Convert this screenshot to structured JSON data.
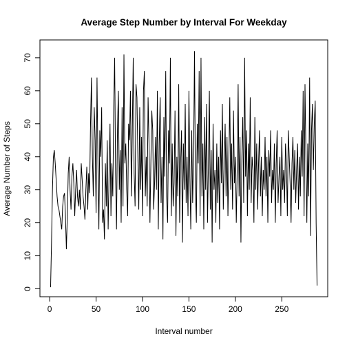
{
  "chart_data": {
    "type": "line",
    "title": "Average Step Number by Interval For Weekday",
    "x_label": "Interval number",
    "y_label": "Average Number of Steps",
    "x": [
      1,
      2,
      3,
      4,
      5,
      6,
      7,
      8,
      9,
      10,
      11,
      12,
      13,
      14,
      15,
      16,
      17,
      18,
      19,
      20,
      21,
      22,
      23,
      24,
      25,
      26,
      27,
      28,
      29,
      30,
      31,
      32,
      33,
      34,
      35,
      36,
      37,
      38,
      39,
      40,
      41,
      42,
      43,
      44,
      45,
      46,
      47,
      48,
      49,
      50,
      51,
      52,
      53,
      54,
      55,
      56,
      57,
      58,
      59,
      60,
      61,
      62,
      63,
      64,
      65,
      66,
      67,
      68,
      69,
      70,
      71,
      72,
      73,
      74,
      75,
      76,
      77,
      78,
      79,
      80,
      81,
      82,
      83,
      84,
      85,
      86,
      87,
      88,
      89,
      90,
      91,
      92,
      93,
      94,
      95,
      96,
      97,
      98,
      99,
      100,
      101,
      102,
      103,
      104,
      105,
      106,
      107,
      108,
      109,
      110,
      111,
      112,
      113,
      114,
      115,
      116,
      117,
      118,
      119,
      120,
      121,
      122,
      123,
      124,
      125,
      126,
      127,
      128,
      129,
      130,
      131,
      132,
      133,
      134,
      135,
      136,
      137,
      138,
      139,
      140,
      141,
      142,
      143,
      144,
      145,
      146,
      147,
      148,
      149,
      150,
      151,
      152,
      153,
      154,
      155,
      156,
      157,
      158,
      159,
      160,
      161,
      162,
      163,
      164,
      165,
      166,
      167,
      168,
      169,
      170,
      171,
      172,
      173,
      174,
      175,
      176,
      177,
      178,
      179,
      180,
      181,
      182,
      183,
      184,
      185,
      186,
      187,
      188,
      189,
      190,
      191,
      192,
      193,
      194,
      195,
      196,
      197,
      198,
      199,
      200,
      201,
      202,
      203,
      204,
      205,
      206,
      207,
      208,
      209,
      210,
      211,
      212,
      213,
      214,
      215,
      216,
      217,
      218,
      219,
      220,
      221,
      222,
      223,
      224,
      225,
      226,
      227,
      228,
      229,
      230,
      231,
      232,
      233,
      234,
      235,
      236,
      237,
      238,
      239,
      240,
      241,
      242,
      243,
      244,
      245,
      246,
      247,
      248,
      249,
      250,
      251,
      252,
      253,
      254,
      255,
      256,
      257,
      258,
      259,
      260,
      261,
      262,
      263,
      264,
      265,
      266,
      267,
      268,
      269,
      270,
      271,
      272,
      273,
      274,
      275,
      276,
      277,
      278,
      279,
      280,
      281,
      282,
      283,
      284,
      285,
      286,
      287,
      288
    ],
    "series": [
      {
        "color": "#000000",
        "values": [
          0.5,
          14,
          30,
          40,
          42,
          38,
          33,
          28,
          25,
          24,
          22,
          20,
          18,
          25,
          28,
          29,
          22,
          12,
          22,
          35,
          40,
          30,
          24,
          34,
          38,
          32,
          22,
          30,
          36,
          28,
          25,
          30,
          24,
          38,
          33,
          28,
          25,
          21,
          30,
          37,
          24,
          35,
          29,
          50,
          64,
          40,
          28,
          55,
          45,
          23,
          64,
          38,
          18,
          48,
          40,
          55,
          20,
          24,
          15,
          38,
          25,
          45,
          18,
          35,
          50,
          22,
          38,
          28,
          55,
          70,
          35,
          18,
          48,
          60,
          30,
          42,
          20,
          55,
          25,
          71,
          38,
          44,
          30,
          22,
          50,
          45,
          60,
          28,
          48,
          70,
          35,
          25,
          62,
          58,
          40,
          24,
          55,
          30,
          46,
          22,
          60,
          66,
          28,
          40,
          25,
          58,
          44,
          20,
          38,
          54,
          48,
          24,
          32,
          46,
          30,
          60,
          18,
          44,
          58,
          26,
          40,
          15,
          52,
          34,
          66,
          28,
          20,
          48,
          38,
          70,
          22,
          44,
          25,
          32,
          54,
          16,
          40,
          28,
          62,
          20,
          38,
          48,
          14,
          44,
          30,
          56,
          26,
          40,
          22,
          60,
          34,
          18,
          48,
          26,
          40,
          72,
          30,
          20,
          50,
          38,
          66,
          22,
          70,
          28,
          44,
          18,
          52,
          30,
          56,
          20,
          38,
          60,
          24,
          42,
          14,
          50,
          30,
          36,
          20,
          44,
          26,
          40,
          18,
          48,
          32,
          56,
          24,
          38,
          50,
          28,
          46,
          22,
          38,
          58,
          30,
          44,
          24,
          54,
          32,
          40,
          20,
          36,
          62,
          28,
          46,
          14,
          40,
          52,
          26,
          70,
          34,
          48,
          22,
          44,
          30,
          58,
          26,
          40,
          36,
          20,
          52,
          30,
          44,
          24,
          38,
          48,
          28,
          40,
          22,
          36,
          30,
          46,
          28,
          40,
          20,
          42,
          34,
          48,
          26,
          36,
          30,
          44,
          20,
          38,
          48,
          26,
          34,
          40,
          22,
          46,
          30,
          36,
          26,
          44,
          38,
          22,
          48,
          40,
          32,
          20,
          38,
          46,
          30,
          42,
          26,
          36,
          44,
          24,
          40,
          28,
          48,
          34,
          60,
          22,
          62,
          40,
          20,
          44,
          28,
          64,
          16,
          48,
          56,
          36,
          50,
          57,
          20,
          1
        ]
      }
    ],
    "xlim": [
      -10.48,
      299.48
    ],
    "ylim": [
      -2.4,
      75.4
    ],
    "xticks": [
      0,
      50,
      100,
      150,
      200,
      250
    ],
    "yticks": [
      0,
      10,
      20,
      30,
      40,
      50,
      60,
      70
    ]
  }
}
